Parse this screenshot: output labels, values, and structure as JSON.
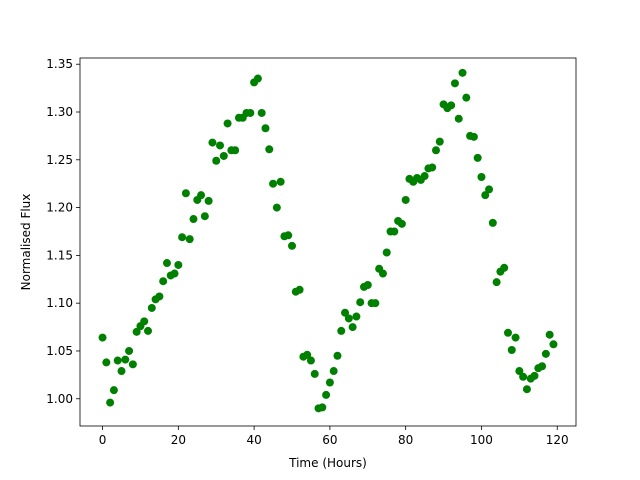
{
  "chart_data": {
    "type": "scatter",
    "xlabel": "Time (Hours)",
    "ylabel": "Normalised Flux",
    "color": "#008000",
    "xlim": [
      -5.95,
      124.95
    ],
    "ylim": [
      0.9715,
      1.3565
    ],
    "xticks": [
      0,
      20,
      40,
      60,
      80,
      100,
      120
    ],
    "yticks": [
      {
        "value": 1.0,
        "label": "1.00"
      },
      1.05,
      {
        "value": 1.1,
        "label": "1.10"
      },
      1.15,
      {
        "value": 1.2,
        "label": "1.20"
      },
      1.25,
      {
        "value": 1.3,
        "label": "1.30"
      },
      1.35
    ],
    "x": [
      0,
      1,
      2,
      3,
      4,
      5,
      6,
      7,
      8,
      9,
      10,
      11,
      12,
      13,
      14,
      15,
      16,
      17,
      18,
      19,
      20,
      21,
      22,
      23,
      24,
      25,
      26,
      27,
      28,
      29,
      30,
      31,
      32,
      33,
      34,
      35,
      36,
      37,
      38,
      39,
      40,
      41,
      42,
      43,
      44,
      45,
      46,
      47,
      48,
      49,
      50,
      51,
      52,
      53,
      54,
      55,
      56,
      57,
      58,
      59,
      60,
      61,
      62,
      63,
      64,
      65,
      66,
      67,
      68,
      69,
      70,
      71,
      72,
      73,
      74,
      75,
      76,
      77,
      78,
      79,
      80,
      81,
      82,
      83,
      84,
      85,
      86,
      87,
      88,
      89,
      90,
      91,
      92,
      93,
      94,
      95,
      96,
      97,
      98,
      99,
      100,
      101,
      102,
      103,
      104,
      105,
      106,
      107,
      108,
      109,
      110,
      111,
      112,
      113,
      114,
      115,
      116,
      117,
      118,
      119
    ],
    "values": [
      1.064,
      1.038,
      0.996,
      1.009,
      1.04,
      1.029,
      1.041,
      1.05,
      1.036,
      1.07,
      1.076,
      1.081,
      1.071,
      1.095,
      1.104,
      1.107,
      1.123,
      1.142,
      1.129,
      1.131,
      1.14,
      1.169,
      1.215,
      1.167,
      1.188,
      1.208,
      1.213,
      1.191,
      1.207,
      1.268,
      1.249,
      1.265,
      1.254,
      1.288,
      1.26,
      1.26,
      1.294,
      1.294,
      1.299,
      1.299,
      1.331,
      1.335,
      1.299,
      1.283,
      1.261,
      1.225,
      1.2,
      1.227,
      1.17,
      1.171,
      1.16,
      1.112,
      1.114,
      1.044,
      1.046,
      1.04,
      1.026,
      0.99,
      0.991,
      1.004,
      1.017,
      1.029,
      1.045,
      1.071,
      1.09,
      1.084,
      1.075,
      1.086,
      1.101,
      1.117,
      1.119,
      1.1,
      1.1,
      1.136,
      1.131,
      1.153,
      1.175,
      1.175,
      1.186,
      1.183,
      1.208,
      1.23,
      1.227,
      1.231,
      1.229,
      1.233,
      1.241,
      1.242,
      1.26,
      1.269,
      1.308,
      1.304,
      1.307,
      1.33,
      1.293,
      1.341,
      1.315,
      1.275,
      1.274,
      1.252,
      1.232,
      1.213,
      1.219,
      1.184,
      1.122,
      1.133,
      1.137,
      1.069,
      1.051,
      1.064,
      1.029,
      1.023,
      1.01,
      1.021,
      1.024,
      1.032,
      1.034,
      1.047,
      1.067,
      1.057
    ]
  }
}
